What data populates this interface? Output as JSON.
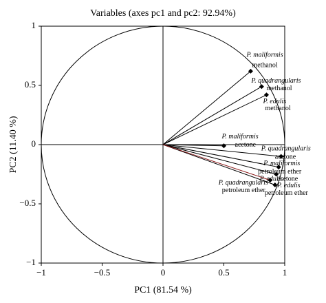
{
  "chart_data": {
    "type": "vectors",
    "title": "Variables (axes pc1 and pc2: 92.94%)",
    "x_label": "PC1 (81.54 %)",
    "y_label": "PC2 (11.40 %)",
    "xlim": [
      -1,
      1
    ],
    "ylim": [
      -1,
      1
    ],
    "xticks": [
      {
        "value": -1,
        "label": "−1"
      },
      {
        "value": -0.5,
        "label": "−0.5"
      },
      0,
      0.5,
      1
    ],
    "yticks": [
      {
        "value": -1,
        "label": "−1"
      },
      {
        "value": -0.5,
        "label": "−0.5"
      },
      0,
      0.5,
      1
    ],
    "points": [
      {
        "name": "P. maliformis",
        "solvent": "methanol",
        "x": 0.72,
        "y": 0.62,
        "color": "#000000"
      },
      {
        "name": "P. quadrangularis",
        "solvent": "methanol",
        "x": 0.81,
        "y": 0.49,
        "color": "#000000"
      },
      {
        "name": "P. edulis",
        "solvent": "methanol",
        "x": 0.85,
        "y": 0.42,
        "color": "#000000"
      },
      {
        "name": "P. maliformis",
        "solvent": "acetone",
        "x": 0.5,
        "y": -0.01,
        "color": "#000000"
      },
      {
        "name": "P. quadrangularis",
        "solvent": "acetone",
        "x": 0.97,
        "y": -0.1,
        "color": "#000000"
      },
      {
        "name": "P. maliformis",
        "solvent": "petroleum ether",
        "x": 0.95,
        "y": -0.19,
        "color": "#000000"
      },
      {
        "name": "P. edulis",
        "solvent": "acetone",
        "x": 0.93,
        "y": -0.25,
        "color": "#000000"
      },
      {
        "name": "P. edulis",
        "solvent": "petroleum ether",
        "x": 0.92,
        "y": -0.34,
        "color": "#000000"
      },
      {
        "name": "P. quadrangularis",
        "solvent": "petroleum ether",
        "x": 0.88,
        "y": -0.3,
        "color": "#8b1a1a"
      }
    ]
  }
}
